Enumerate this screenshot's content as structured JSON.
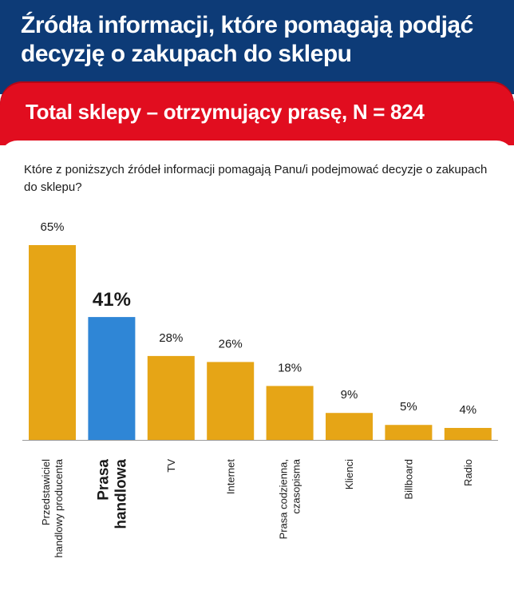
{
  "header": {
    "title": "Źródła informacji, które pomagają podjąć decyzję o zakupach do sklepu",
    "subtitle": "Total sklepy – otrzymujący prasę, N = 824"
  },
  "question": "Które z poniższych źródeł informacji pomagają Panu/i podejmować decyzje o zakupach do sklepu?",
  "colors": {
    "header_blue": "#0d3b77",
    "band_red": "#e10d1f",
    "bar_orange": "#e6a516",
    "bar_highlight": "#2f86d6"
  },
  "chart_data": {
    "type": "bar",
    "categories": [
      "Przedstawiciel handlowy producenta",
      "Prasa handlowa",
      "TV",
      "Internet",
      "Prasa codzienna, czasopisma",
      "Klienci",
      "Billboard",
      "Radio"
    ],
    "values": [
      65,
      41,
      28,
      26,
      18,
      9,
      5,
      4
    ],
    "value_labels": [
      "65%",
      "41%",
      "28%",
      "26%",
      "18%",
      "9%",
      "5%",
      "4%"
    ],
    "highlight_category": "Prasa handlowa",
    "ylim": [
      0,
      65
    ],
    "grid": false,
    "legend": "none"
  }
}
